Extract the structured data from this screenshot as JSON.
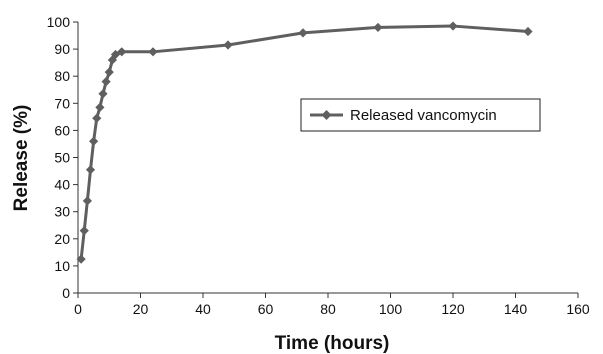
{
  "chart_data": {
    "type": "line",
    "xlabel": "Time (hours)",
    "ylabel": "Release (%)",
    "xlim": [
      0,
      160
    ],
    "ylim": [
      0,
      100
    ],
    "xticks": [
      0,
      20,
      40,
      60,
      80,
      100,
      120,
      140,
      160
    ],
    "yticks": [
      0,
      10,
      20,
      30,
      40,
      50,
      60,
      70,
      80,
      90,
      100
    ],
    "grid": false,
    "legend_position": "right",
    "colors": {
      "series": "#5f5f5f",
      "axis": "#333333"
    },
    "series": [
      {
        "name": "Released vancomycin",
        "marker": "diamond",
        "x": [
          1,
          2,
          3,
          4,
          5,
          6,
          7,
          8,
          9,
          10,
          11,
          12,
          14,
          24,
          48,
          72,
          96,
          120,
          144
        ],
        "y": [
          12.5,
          23,
          34,
          45.5,
          56,
          64.5,
          68.5,
          73.5,
          78,
          81.5,
          86,
          88,
          89,
          89,
          91.5,
          96,
          98,
          98.5,
          96.5
        ]
      }
    ]
  }
}
